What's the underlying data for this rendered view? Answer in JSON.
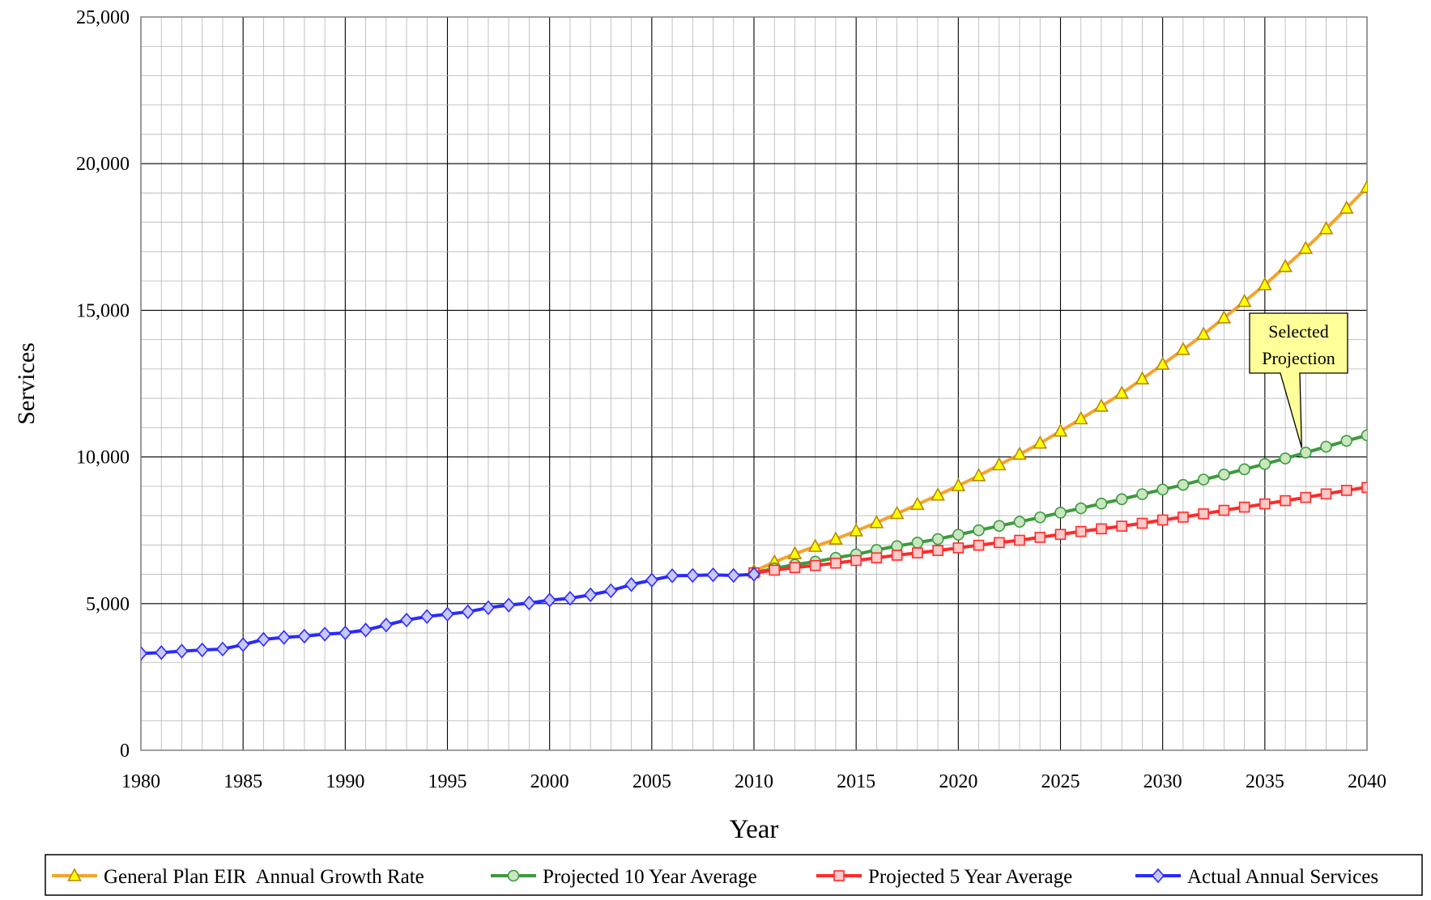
{
  "chart_data": {
    "type": "line",
    "xlabel": "Year",
    "ylabel": "Services",
    "xlim": [
      1980,
      2040
    ],
    "ylim": [
      0,
      25000
    ],
    "x_ticks": [
      "1980",
      "1985",
      "1990",
      "1995",
      "2000",
      "2005",
      "2010",
      "2015",
      "2020",
      "2025",
      "2030",
      "2035",
      "2040"
    ],
    "y_ticks": [
      "0",
      "5,000",
      "10,000",
      "15,000",
      "20,000",
      "25,000"
    ],
    "grid": "major and minor",
    "legend_position": "bottom",
    "annotation": {
      "lines": [
        "Selected",
        "Projection"
      ],
      "target_series": "Projected 10 Year Average",
      "target_x": 2037,
      "target_y": 10150
    },
    "series": [
      {
        "name": "General Plan EIR  Annual Growth Rate",
        "color": "#f5a32a",
        "marker": "triangle",
        "marker_fill": "#ffff00",
        "x": [
          2010,
          2011,
          2012,
          2013,
          2014,
          2015,
          2016,
          2017,
          2018,
          2019,
          2020,
          2021,
          2022,
          2023,
          2024,
          2025,
          2026,
          2027,
          2028,
          2029,
          2030,
          2031,
          2032,
          2033,
          2034,
          2035,
          2036,
          2037,
          2038,
          2039,
          2040
        ],
        "values": [
          6100,
          6420,
          6700,
          6950,
          7200,
          7480,
          7760,
          8070,
          8380,
          8700,
          9020,
          9360,
          9730,
          10090,
          10470,
          10880,
          11300,
          11730,
          12170,
          12660,
          13160,
          13660,
          14180,
          14740,
          15300,
          15870,
          16490,
          17110,
          17780,
          18480,
          19190
        ]
      },
      {
        "name": "Projected 10 Year Average",
        "color": "#3d9a3d",
        "marker": "circle",
        "marker_fill": "#c8e6c0",
        "x": [
          2010,
          2011,
          2012,
          2013,
          2014,
          2015,
          2016,
          2017,
          2018,
          2019,
          2020,
          2021,
          2022,
          2023,
          2024,
          2025,
          2026,
          2027,
          2028,
          2029,
          2030,
          2031,
          2032,
          2033,
          2034,
          2035,
          2036,
          2037,
          2038,
          2039,
          2040
        ],
        "values": [
          6050,
          6200,
          6330,
          6430,
          6560,
          6680,
          6830,
          6960,
          7080,
          7200,
          7350,
          7500,
          7650,
          7790,
          7940,
          8100,
          8250,
          8410,
          8560,
          8730,
          8890,
          9050,
          9230,
          9400,
          9580,
          9760,
          9950,
          10150,
          10350,
          10550,
          10740
        ]
      },
      {
        "name": "Projected 5 Year Average",
        "color": "#ff2a2a",
        "marker": "square",
        "marker_fill": "#ffc8c8",
        "x": [
          2010,
          2011,
          2012,
          2013,
          2014,
          2015,
          2016,
          2017,
          2018,
          2019,
          2020,
          2021,
          2022,
          2023,
          2024,
          2025,
          2026,
          2027,
          2028,
          2029,
          2030,
          2031,
          2032,
          2033,
          2034,
          2035,
          2036,
          2037,
          2038,
          2039,
          2040
        ],
        "values": [
          6050,
          6140,
          6230,
          6300,
          6380,
          6470,
          6560,
          6650,
          6730,
          6810,
          6900,
          6990,
          7080,
          7160,
          7260,
          7360,
          7460,
          7550,
          7640,
          7740,
          7850,
          7950,
          8060,
          8180,
          8290,
          8400,
          8510,
          8620,
          8740,
          8860,
          8960
        ]
      },
      {
        "name": "Actual Annual Services",
        "color": "#2a2aff",
        "marker": "diamond",
        "marker_fill": "#c8c8ff",
        "x": [
          1980,
          1981,
          1982,
          1983,
          1984,
          1985,
          1986,
          1987,
          1988,
          1989,
          1990,
          1991,
          1992,
          1993,
          1994,
          1995,
          1996,
          1997,
          1998,
          1999,
          2000,
          2001,
          2002,
          2003,
          2004,
          2005,
          2006,
          2007,
          2008,
          2009,
          2010
        ],
        "values": [
          3300,
          3330,
          3380,
          3420,
          3450,
          3600,
          3780,
          3850,
          3890,
          3960,
          4000,
          4100,
          4270,
          4440,
          4560,
          4640,
          4720,
          4860,
          4950,
          5020,
          5120,
          5180,
          5300,
          5440,
          5650,
          5800,
          5950,
          5960,
          5980,
          5960,
          6000
        ]
      }
    ]
  }
}
